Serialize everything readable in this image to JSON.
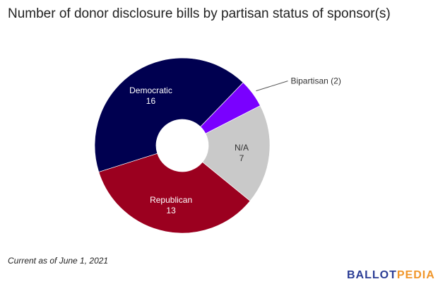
{
  "chart_data": {
    "type": "pie",
    "title": "Number of donor disclosure bills by partisan status of sponsor(s)",
    "categories": [
      "Bipartisan",
      "N/A",
      "Republican",
      "Democratic"
    ],
    "values": [
      2,
      7,
      13,
      16
    ],
    "colors": [
      "#7a00ff",
      "#c9c9c9",
      "#9b001f",
      "#000050"
    ],
    "labels": [
      {
        "name": "Bipartisan (2)",
        "value": "",
        "outside": true
      },
      {
        "name": "N/A",
        "value": "7",
        "outside": false
      },
      {
        "name": "Republican",
        "value": "13",
        "outside": false
      },
      {
        "name": "Democratic",
        "value": "16",
        "outside": false
      }
    ],
    "donut": true
  },
  "note": "Current as of June 1, 2021",
  "logo": {
    "part1": "BALLOT",
    "part2": "PEDIA"
  }
}
